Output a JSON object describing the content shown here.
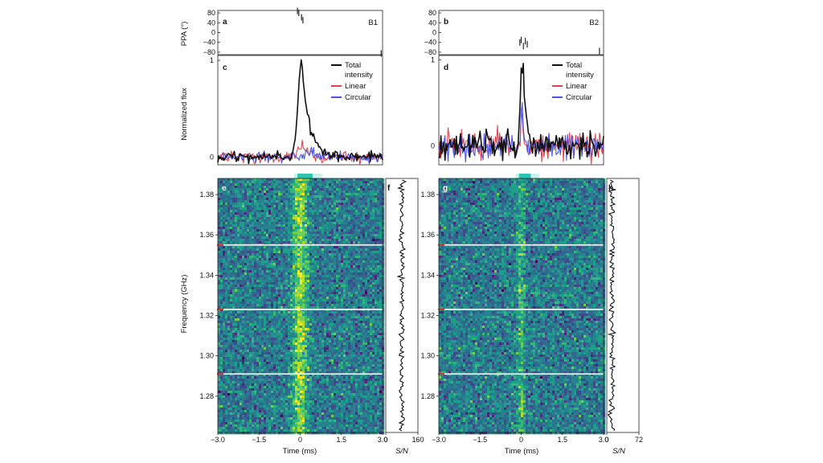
{
  "colors": {
    "total": "#111111",
    "linear": "#e8404a",
    "circular": "#4a55e6",
    "marker": "#2fc4b2",
    "rfi_tick": "#d7302a"
  },
  "text": {
    "ppa_label": "PPA (°)",
    "flux_label": "Normalized flux",
    "freq_label": "Frequency (GHz)",
    "time_label": "Time (ms)",
    "sn_label": "S/N"
  },
  "chart_data": [
    {
      "panel": "a",
      "type": "scatter",
      "burst": "B1",
      "ylabel": "PPA (°)",
      "ylim": [
        -90,
        90
      ],
      "yticks": [
        "80",
        "40",
        "0",
        "−40",
        "−80"
      ],
      "points": [
        [
          -0.1,
          88
        ],
        [
          -0.05,
          80
        ],
        [
          0.05,
          62
        ],
        [
          0.1,
          50
        ],
        [
          2.95,
          -85
        ]
      ]
    },
    {
      "panel": "b",
      "type": "scatter",
      "burst": "B2",
      "ylabel": "PPA (°)",
      "ylim": [
        -90,
        90
      ],
      "yticks": [
        "80",
        "40",
        "0",
        "−40",
        "−80"
      ],
      "points": [
        [
          -0.05,
          -40
        ],
        [
          0.0,
          -30
        ],
        [
          0.08,
          -55
        ],
        [
          0.15,
          -35
        ],
        [
          0.22,
          -48
        ],
        [
          2.85,
          -75
        ]
      ]
    },
    {
      "panel": "c",
      "type": "line",
      "ylabel": "Normalized flux",
      "yticks": [
        "1",
        "0"
      ],
      "ylim": [
        -0.08,
        1.05
      ],
      "legend": [
        "Total intensity",
        "Linear",
        "Circular"
      ],
      "series": [
        {
          "name": "Total intensity",
          "peak": 1.0,
          "center": 0.05,
          "width": 0.25,
          "tail": 1.1
        },
        {
          "name": "Linear",
          "peak": 0.1,
          "center": 0.1,
          "width": 0.35,
          "tail": 0.8
        },
        {
          "name": "Circular",
          "peak": 0.07,
          "center": 0.4,
          "width": 0.35,
          "tail": 0.8
        }
      ]
    },
    {
      "panel": "d",
      "type": "line",
      "ylabel": "Normalized flux",
      "yticks": [
        "1",
        "0"
      ],
      "ylim": [
        -0.22,
        1.05
      ],
      "legend": [
        "Total intensity",
        "Linear",
        "Circular"
      ],
      "series": [
        {
          "name": "Total intensity",
          "peak": 1.0,
          "center": 0.05,
          "width": 0.15,
          "tail": 0.7
        },
        {
          "name": "Linear",
          "peak": 0.4,
          "center": 0.05,
          "width": 0.12,
          "tail": 0.4
        },
        {
          "name": "Circular",
          "peak": 0.5,
          "center": 0.05,
          "width": 0.12,
          "tail": 0.4
        }
      ]
    },
    {
      "panel": "e",
      "type": "heatmap",
      "burst_center": 0.0,
      "burst_halfwidth": 0.28,
      "xlabel": "Time (ms)",
      "xticks": [
        "−3.0",
        "−1.5",
        "0",
        "1.5",
        "3.0"
      ],
      "xlim": [
        -3.0,
        3.0
      ],
      "ylabel": "Frequency (GHz)",
      "yticks": [
        "1.38",
        "1.36",
        "1.34",
        "1.32",
        "1.30",
        "1.28"
      ],
      "ylim": [
        1.262,
        1.388
      ],
      "masked_channels": [
        1.355,
        1.323,
        1.291
      ]
    },
    {
      "panel": "g",
      "type": "heatmap",
      "burst_center": 0.0,
      "burst_halfwidth": 0.15,
      "xlabel": "Time (ms)",
      "xticks": [
        "−3.0",
        "−1.5",
        "0",
        "1.5",
        "3.0"
      ],
      "xlim": [
        -3.0,
        3.0
      ],
      "ylabel": "Frequency (GHz)",
      "yticks": [
        "1.38",
        "1.36",
        "1.34",
        "1.32",
        "1.30",
        "1.28"
      ],
      "ylim": [
        1.262,
        1.388
      ],
      "masked_channels": [
        1.355,
        1.323,
        1.291
      ]
    },
    {
      "panel": "f",
      "type": "line",
      "xlabel": "S/N",
      "xticks": [
        "0",
        "160"
      ],
      "xlim": [
        0,
        160
      ],
      "center": 80,
      "spread": 10
    },
    {
      "panel": "h",
      "type": "line",
      "xlabel": "S/N",
      "xticks": [
        "0",
        "72"
      ],
      "xlim": [
        0,
        72
      ],
      "center": 12,
      "spread": 5
    }
  ]
}
